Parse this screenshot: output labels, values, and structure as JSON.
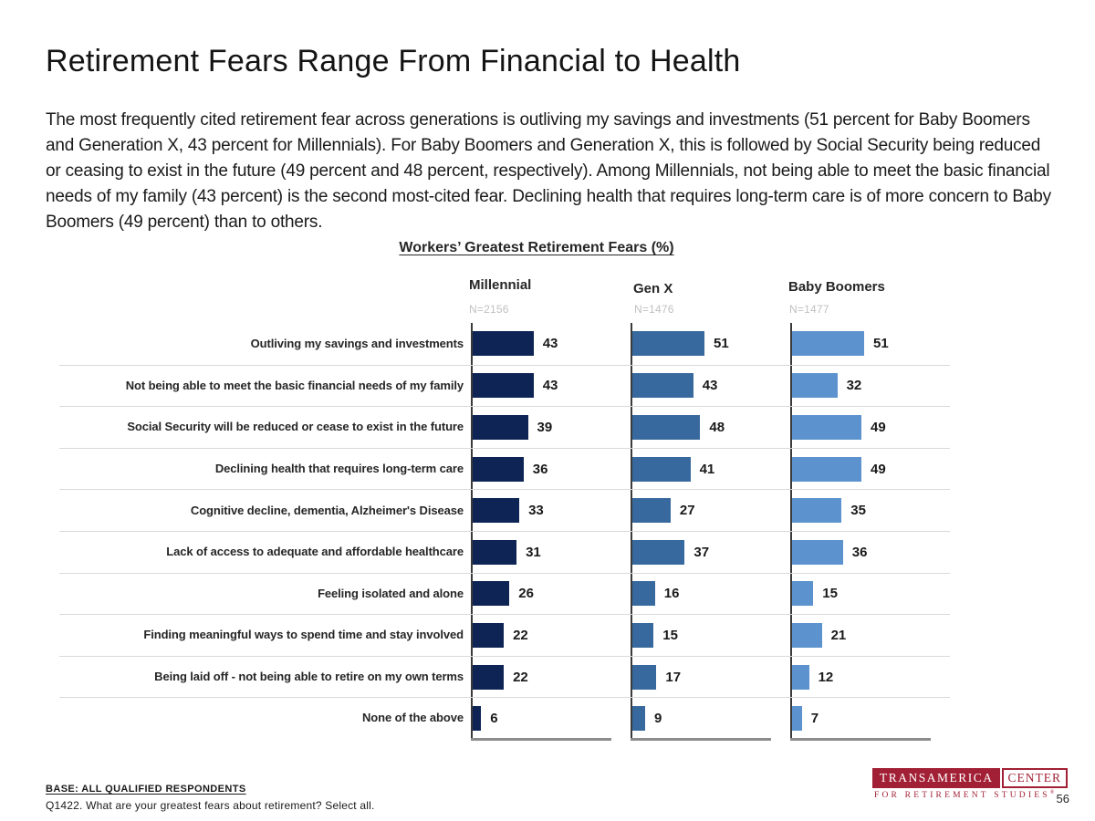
{
  "slide": {
    "title": "Retirement Fears Range From Financial to Health",
    "paragraph": "The most frequently cited retirement fear across generations is outliving my savings and investments (51 percent for Baby Boomers and Generation X, 43 percent for Millennials). For Baby Boomers and Generation X, this is followed by Social Security being reduced or ceasing to exist in the future (49 percent and 48 percent, respectively). Among Millennials, not being able to meet the basic financial needs of my family (43 percent) is the second most-cited fear. Declining health that requires long-term care is of more concern to Baby Boomers (49 percent) than to others.",
    "page_number": "56"
  },
  "footer": {
    "base_note": "BASE: ALL QUALIFIED RESPONDENTS",
    "question_note": "Q1422. What are your greatest fears about retirement? Select all."
  },
  "logo": {
    "primary": "TRANSAMERICA",
    "secondary": "CENTER",
    "tagline": "FOR RETIREMENT STUDIES",
    "registered_mark": "®",
    "brand_color": "#A22035"
  },
  "chart_data": {
    "type": "bar",
    "orientation": "horizontal",
    "title": "Workers’ Greatest Retirement Fears (%)",
    "xlabel": "",
    "ylabel": "",
    "xlim": [
      0,
      100
    ],
    "grid": false,
    "value_labels": true,
    "legend_position": "column-headers",
    "categories": [
      "Outliving my savings and investments",
      "Not being able to meet the basic financial needs of my family",
      "Social Security will be reduced or cease to exist in the future",
      "Declining health that requires long-term care",
      "Cognitive decline, dementia, Alzheimer's Disease",
      "Lack of access to adequate and affordable healthcare",
      "Feeling isolated and alone",
      "Finding meaningful ways to spend time and stay involved",
      "Being laid off - not being able to retire on my own terms",
      "None of the above"
    ],
    "series": [
      {
        "name": "Millennial",
        "n_label": "N=2156",
        "color": "#0D2455",
        "values": [
          43,
          43,
          39,
          36,
          33,
          31,
          26,
          22,
          22,
          6
        ]
      },
      {
        "name": "Gen X",
        "n_label": "N=1476",
        "color": "#38699E",
        "values": [
          51,
          43,
          48,
          41,
          27,
          37,
          16,
          15,
          17,
          9
        ]
      },
      {
        "name": "Baby Boomers",
        "n_label": "N=1477",
        "color": "#5C93CE",
        "values": [
          51,
          32,
          49,
          49,
          35,
          36,
          15,
          21,
          12,
          7
        ]
      }
    ]
  }
}
